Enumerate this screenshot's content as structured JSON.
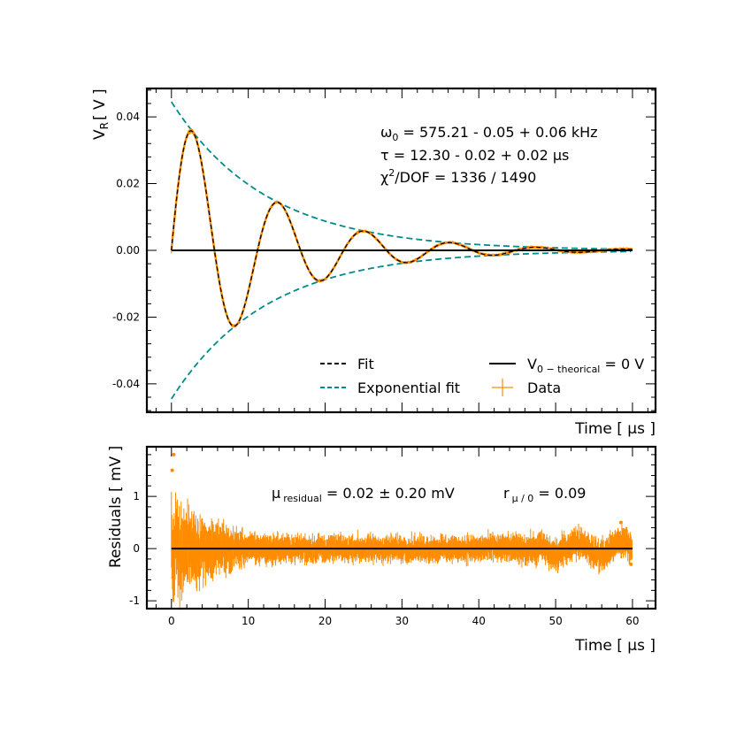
{
  "chart_data": [
    {
      "type": "line",
      "panel": "main",
      "ylabel": {
        "main": "V",
        "sub": "R",
        "unit": "[ V ]"
      },
      "xlabel": "Time [ μs ]",
      "xlim": [
        -3.2,
        63
      ],
      "ylim": [
        -0.0485,
        0.0485
      ],
      "y_ticks": [
        0.04,
        0.02,
        0.0,
        -0.02,
        -0.04
      ],
      "y_tick_labels": [
        "0.04",
        "0.02",
        "0.00",
        "-0.02",
        "-0.04"
      ],
      "grid": false,
      "legend_placement": "lower-right",
      "model": {
        "amplitude_V": 0.0445,
        "tau_us": 12.3,
        "omega0_kHz": 575.21,
        "period_us": 11.2,
        "t_start_us": 0,
        "t_end_us": 60
      },
      "series": [
        {
          "name": "Fit",
          "style": "dashed",
          "color": "#000000",
          "x": [
            0,
            2.2,
            7.8,
            13.5,
            19.2,
            24.8,
            30.5,
            36.1,
            41.7,
            47.3,
            53.0,
            60
          ],
          "values": [
            0.0,
            0.036,
            -0.023,
            0.0145,
            -0.0093,
            0.0059,
            -0.004,
            0.0025,
            -0.0016,
            0.001,
            -0.0006,
            0.0
          ]
        },
        {
          "name": "Exponential fit",
          "style": "dashed",
          "color": "#008b8b",
          "x": [
            0,
            10,
            20,
            30,
            40,
            50,
            60
          ],
          "upper": [
            0.0445,
            0.0197,
            0.0087,
            0.0039,
            0.0017,
            0.0008,
            0.0003
          ],
          "lower": [
            -0.0445,
            -0.0197,
            -0.0087,
            -0.0039,
            -0.0017,
            -0.0008,
            -0.0003
          ]
        },
        {
          "name": "V_{0-theorical} = 0 V",
          "style": "solid",
          "color": "#000000",
          "x": [
            0,
            60
          ],
          "values": [
            0,
            0
          ]
        },
        {
          "name": "Data",
          "style": "errorbar",
          "color": "#ff8c00",
          "x": [
            0,
            2.2,
            7.8,
            13.5,
            19.2,
            24.8,
            30.5,
            36.1,
            41.7,
            47.3,
            53.0,
            60
          ],
          "values": [
            0.0,
            0.036,
            -0.023,
            0.0145,
            -0.0093,
            0.0059,
            -0.004,
            0.0025,
            -0.0016,
            0.001,
            -0.0006,
            0.0
          ]
        }
      ],
      "legend": {
        "fit": "Fit",
        "exp": "Exponential fit",
        "v0_main": "V",
        "v0_sub": "0 − theorical",
        "v0_rest": " = 0 V",
        "data": "Data"
      },
      "annotations": {
        "omega_main": "ω",
        "omega_sub": "0",
        "omega_rest": " = 575.21 - 0.05 + 0.06 kHz",
        "tau": "τ = 12.30 - 0.02 + 0.02 μs",
        "chi_main": "χ",
        "chi_sup": "2",
        "chi_rest": "/DOF = 1336 / 1490"
      }
    },
    {
      "type": "line",
      "panel": "residuals",
      "ylabel": "Residuals [ mV ]",
      "xlabel": "Time [ μs ]",
      "xlim": [
        -3.2,
        63
      ],
      "ylim": [
        -1.15,
        1.95
      ],
      "x_ticks": [
        0,
        10,
        20,
        30,
        40,
        50,
        60
      ],
      "x_tick_labels": [
        "0",
        "10",
        "20",
        "30",
        "40",
        "50",
        "60"
      ],
      "y_ticks": [
        1,
        0,
        -1
      ],
      "y_tick_labels": [
        "1",
        "0",
        "-1"
      ],
      "grid": false,
      "series": [
        {
          "name": "Residuals",
          "style": "errorbar",
          "color": "#ff8c00",
          "x": [
            0,
            5,
            10,
            20,
            30,
            40,
            50,
            60
          ],
          "noise_amplitude_mV": [
            0.9,
            0.55,
            0.3,
            0.25,
            0.25,
            0.25,
            0.3,
            0.3
          ]
        },
        {
          "name": "zero",
          "style": "solid",
          "color": "#000000",
          "x": [
            0,
            60
          ],
          "values": [
            0,
            0
          ]
        }
      ],
      "annotations": {
        "mu_main": "μ",
        "mu_sub": "residual",
        "mu_rest": " = 0.02 ± 0.20 mV",
        "r_main": "r",
        "r_sub": "μ / 0",
        "r_rest": " = 0.09"
      }
    }
  ]
}
